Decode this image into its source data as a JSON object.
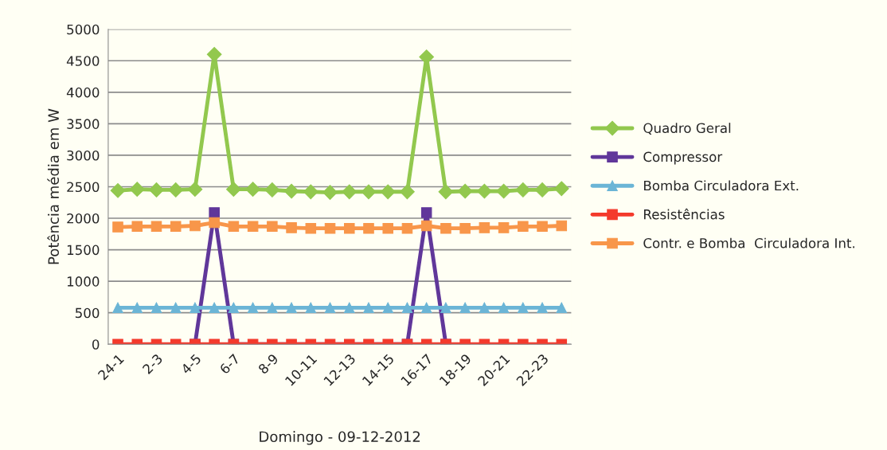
{
  "chart_data": {
    "type": "line",
    "xlabel": "Domingo - 09-12-2012",
    "ylabel": "Potência média em W",
    "categories": [
      "24-1",
      null,
      "2-3",
      null,
      "4-5",
      null,
      "6-7",
      null,
      "8-9",
      null,
      "10-11",
      null,
      "12-13",
      null,
      "14-15",
      null,
      "16-17",
      null,
      "18-19",
      null,
      "20-21",
      null,
      "22-23",
      null
    ],
    "series": [
      {
        "name": "Quadro Geral",
        "color": "#92c84e",
        "marker": "diamond",
        "values": [
          2440,
          2460,
          2450,
          2450,
          2460,
          4600,
          2460,
          2460,
          2450,
          2430,
          2420,
          2410,
          2420,
          2420,
          2420,
          2420,
          4560,
          2420,
          2430,
          2430,
          2430,
          2450,
          2450,
          2470
        ]
      },
      {
        "name": "Compressor",
        "color": "#60379a",
        "marker": "square",
        "values": [
          null,
          null,
          null,
          null,
          0,
          2090,
          0,
          null,
          null,
          null,
          null,
          null,
          null,
          null,
          null,
          0,
          2090,
          0,
          null,
          null,
          null,
          null,
          null,
          null
        ]
      },
      {
        "name": "Bomba Circuladora Ext.",
        "color": "#6bb5d6",
        "marker": "triangle",
        "values": [
          580,
          580,
          580,
          580,
          580,
          580,
          580,
          580,
          580,
          580,
          580,
          580,
          580,
          580,
          580,
          580,
          580,
          580,
          580,
          580,
          580,
          580,
          580,
          580
        ]
      },
      {
        "name": "Resistências",
        "color": "#f43a2c",
        "marker": "square",
        "values": [
          0,
          0,
          0,
          0,
          0,
          0,
          0,
          0,
          0,
          0,
          0,
          0,
          0,
          0,
          0,
          0,
          0,
          0,
          0,
          0,
          0,
          0,
          0,
          0
        ]
      },
      {
        "name": "Contr. e Bomba  Circuladora Int.",
        "color": "#f8964a",
        "marker": "square",
        "values": [
          1860,
          1870,
          1870,
          1870,
          1880,
          1930,
          1870,
          1870,
          1870,
          1850,
          1840,
          1840,
          1840,
          1840,
          1840,
          1840,
          1880,
          1840,
          1840,
          1850,
          1850,
          1870,
          1870,
          1880
        ]
      }
    ],
    "ylim": [
      0,
      5000
    ],
    "yticks": [
      0,
      500,
      1000,
      1500,
      2000,
      2500,
      3000,
      3500,
      4000,
      4500,
      5000
    ],
    "grid": "y",
    "legend": "right"
  }
}
